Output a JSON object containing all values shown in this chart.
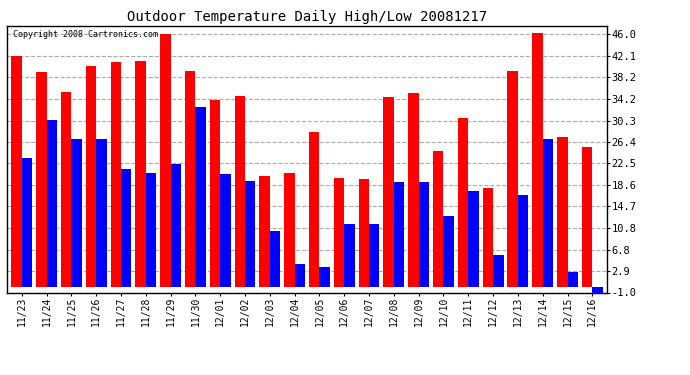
{
  "title": "Outdoor Temperature Daily High/Low 20081217",
  "copyright_text": "Copyright 2008 Cartronics.com",
  "dates": [
    "11/23",
    "11/24",
    "11/25",
    "11/26",
    "11/27",
    "11/28",
    "11/29",
    "11/30",
    "12/01",
    "12/02",
    "12/03",
    "12/04",
    "12/05",
    "12/06",
    "12/07",
    "12/08",
    "12/09",
    "12/10",
    "12/11",
    "12/12",
    "12/13",
    "12/14",
    "12/15",
    "12/16"
  ],
  "highs": [
    42.1,
    39.2,
    35.6,
    40.3,
    41.0,
    41.2,
    46.0,
    39.4,
    34.0,
    34.8,
    20.3,
    20.8,
    28.2,
    19.8,
    19.6,
    34.7,
    35.3,
    24.8,
    30.8,
    18.0,
    39.3,
    46.2,
    27.4,
    25.5
  ],
  "lows": [
    23.5,
    30.5,
    27.0,
    26.9,
    21.5,
    20.7,
    22.4,
    32.8,
    20.6,
    19.4,
    10.2,
    4.2,
    3.6,
    11.5,
    11.5,
    19.2,
    19.2,
    13.0,
    17.4,
    5.8,
    16.8,
    27.0,
    2.8,
    -1.5
  ],
  "high_color": "#ff0000",
  "low_color": "#0000ff",
  "bg_color": "#ffffff",
  "grid_color": "#aaaaaa",
  "bar_width": 0.42,
  "ylim_min": -1.0,
  "ylim_max": 47.5,
  "yticks": [
    -1.0,
    2.9,
    6.8,
    10.8,
    14.7,
    18.6,
    22.5,
    26.4,
    30.3,
    34.2,
    38.2,
    42.1,
    46.0
  ],
  "figsize": [
    6.9,
    3.75
  ],
  "dpi": 100
}
